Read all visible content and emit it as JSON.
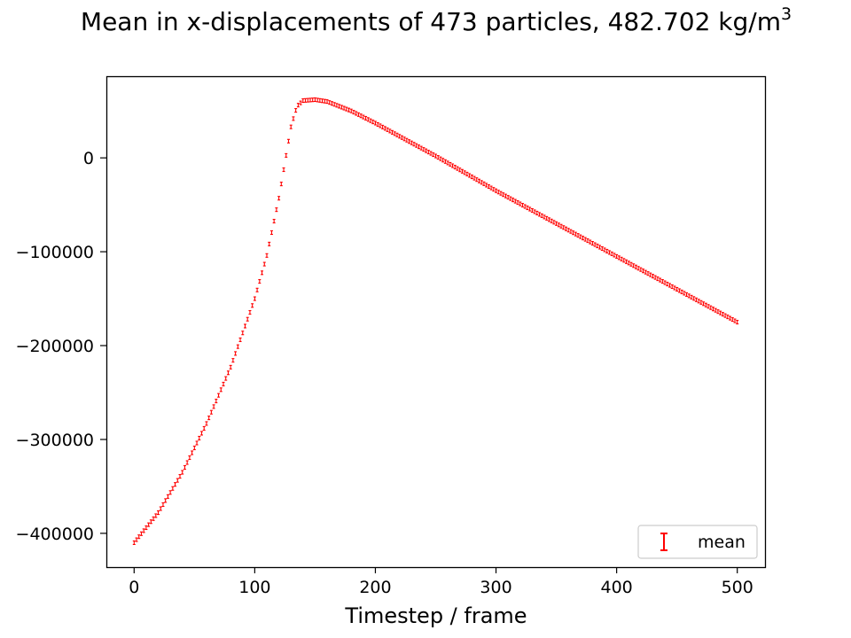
{
  "chart_data": {
    "type": "scatter",
    "title_main": "Mean in x-displacements of 473 particles, 482.702 kg/m",
    "title_superscript": "3",
    "xlabel": "Timestep / frame",
    "ylabel": "",
    "xlim": [
      -23,
      523
    ],
    "ylim": [
      -436000,
      87000
    ],
    "x_ticks": [
      0,
      100,
      200,
      300,
      400,
      500
    ],
    "x_tick_labels": [
      "0",
      "100",
      "200",
      "300",
      "400",
      "500"
    ],
    "y_ticks": [
      0,
      -100000,
      -200000,
      -300000,
      -400000
    ],
    "y_tick_labels": [
      "0",
      "−100000",
      "−200000",
      "−300000",
      "−400000"
    ],
    "grid": false,
    "legend": {
      "position": "lower-right",
      "entries": [
        "mean"
      ]
    },
    "series": [
      {
        "name": "mean",
        "marker": "errorbar",
        "color": "#ff0000",
        "x_range": [
          0,
          500
        ],
        "x_step": 2,
        "keypoints_x": [
          0,
          20,
          40,
          60,
          80,
          100,
          110,
          120,
          125,
          130,
          135,
          140,
          150,
          160,
          180,
          200,
          250,
          300,
          350,
          400,
          450,
          500
        ],
        "keypoints_y": [
          -410000,
          -378000,
          -335000,
          -283000,
          -223000,
          -150000,
          -104000,
          -43000,
          -5000,
          33000,
          55000,
          61000,
          62000,
          60000,
          50000,
          37000,
          2000,
          -35000,
          -70000,
          -105000,
          -140000,
          -175000
        ]
      }
    ]
  }
}
